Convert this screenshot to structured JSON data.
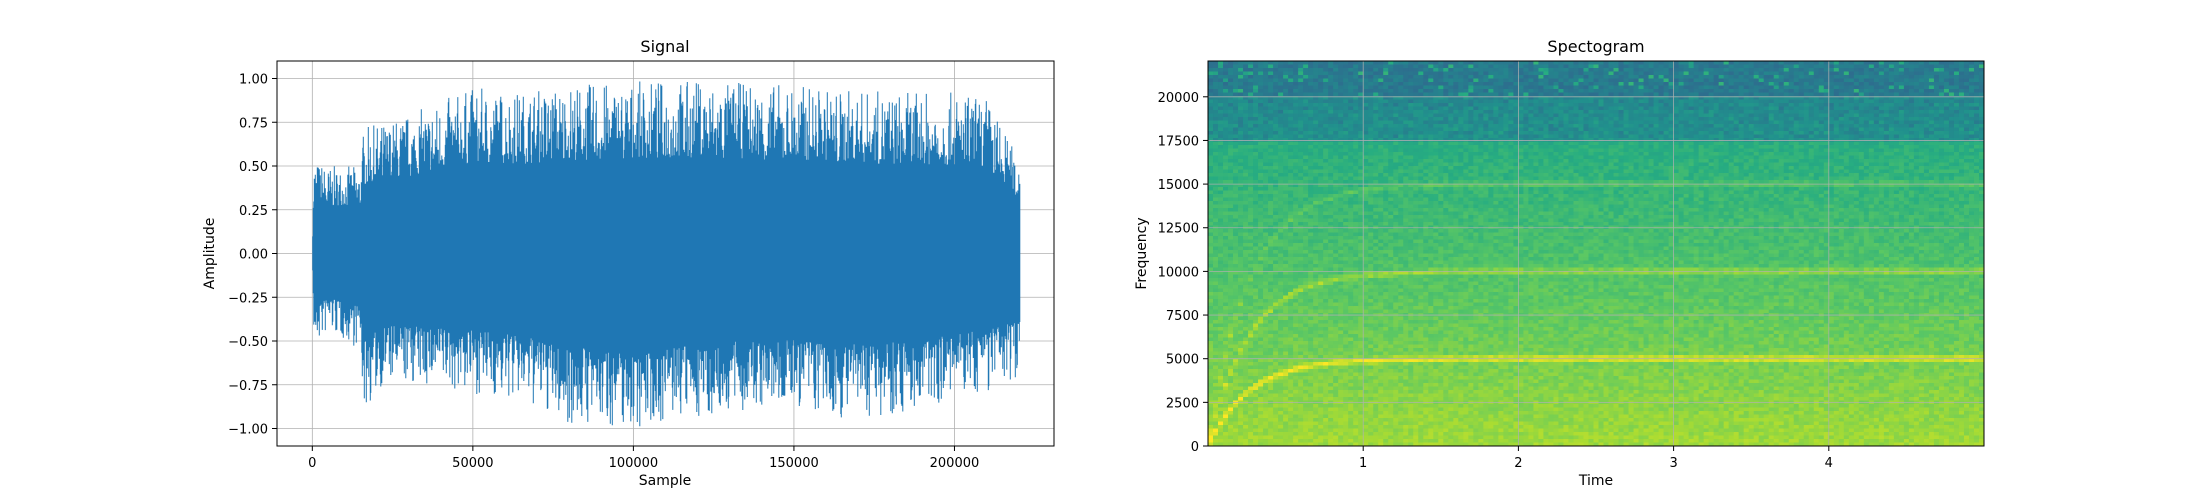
{
  "chart_data": [
    {
      "type": "line",
      "title": "Signal",
      "xlabel": "Sample",
      "ylabel": "Amplitude",
      "xlim": [
        -11000,
        231000
      ],
      "ylim": [
        -1.1,
        1.1
      ],
      "grid": true,
      "xticks": [
        0,
        50000,
        100000,
        150000,
        200000
      ],
      "xtick_labels": [
        "0",
        "50000",
        "100000",
        "150000",
        "200000"
      ],
      "yticks": [
        -1.0,
        -0.75,
        -0.5,
        -0.25,
        0.0,
        0.25,
        0.5,
        0.75,
        1.0
      ],
      "ytick_labels": [
        "−1.00",
        "−0.75",
        "−0.50",
        "−0.25",
        "0.00",
        "0.25",
        "0.50",
        "0.75",
        "1.00"
      ],
      "series": [
        {
          "color": "#1f77b4",
          "x_range": [
            0,
            220500
          ],
          "envelope": {
            "x": [
              0,
              500,
              5000,
              15000,
              16000,
              22000,
              30000,
              50000,
              65000,
              80000,
              100000,
              115000,
              130000,
              150000,
              160000,
              175000,
              190000,
              200000,
              210000,
              220000
            ],
            "max": [
              0.0,
              0.54,
              0.5,
              0.5,
              0.72,
              0.75,
              0.8,
              0.95,
              0.93,
              0.97,
              0.98,
              1.0,
              0.98,
              0.97,
              0.95,
              0.93,
              0.92,
              0.92,
              0.9,
              0.55
            ],
            "min": [
              0.0,
              -0.55,
              -0.45,
              -0.55,
              -0.92,
              -0.75,
              -0.75,
              -0.8,
              -0.85,
              -0.98,
              -1.0,
              -0.95,
              -0.92,
              -0.88,
              -0.95,
              -0.93,
              -0.9,
              -0.82,
              -0.8,
              -0.7
            ]
          }
        }
      ]
    },
    {
      "type": "heatmap",
      "title": "Spectogram",
      "xlabel": "Time",
      "ylabel": "Frequency",
      "xlim": [
        0,
        5.0
      ],
      "ylim": [
        0,
        22050
      ],
      "grid": true,
      "xticks": [
        1,
        2,
        3,
        4
      ],
      "xtick_labels": [
        "1",
        "2",
        "3",
        "4"
      ],
      "yticks": [
        0,
        2500,
        5000,
        7500,
        10000,
        12500,
        15000,
        17500,
        20000
      ],
      "ytick_labels": [
        "0",
        "2500",
        "5000",
        "7500",
        "10000",
        "12500",
        "15000",
        "17500",
        "20000"
      ],
      "colormap": "viridis",
      "harmonics": [
        {
          "frequency": 5000,
          "intensity": "high"
        },
        {
          "frequency": 10000,
          "intensity": "medium"
        },
        {
          "frequency": 15000,
          "intensity": "low"
        }
      ],
      "glide_start_frequency": 0,
      "glide_settle_time": 0.8,
      "top_band_cutoff_frequency": 20000,
      "background_color_low_freq": "#c8e020",
      "background_color_mid_freq": "#5ec962",
      "background_color_high_freq": "#2a788e"
    }
  ]
}
